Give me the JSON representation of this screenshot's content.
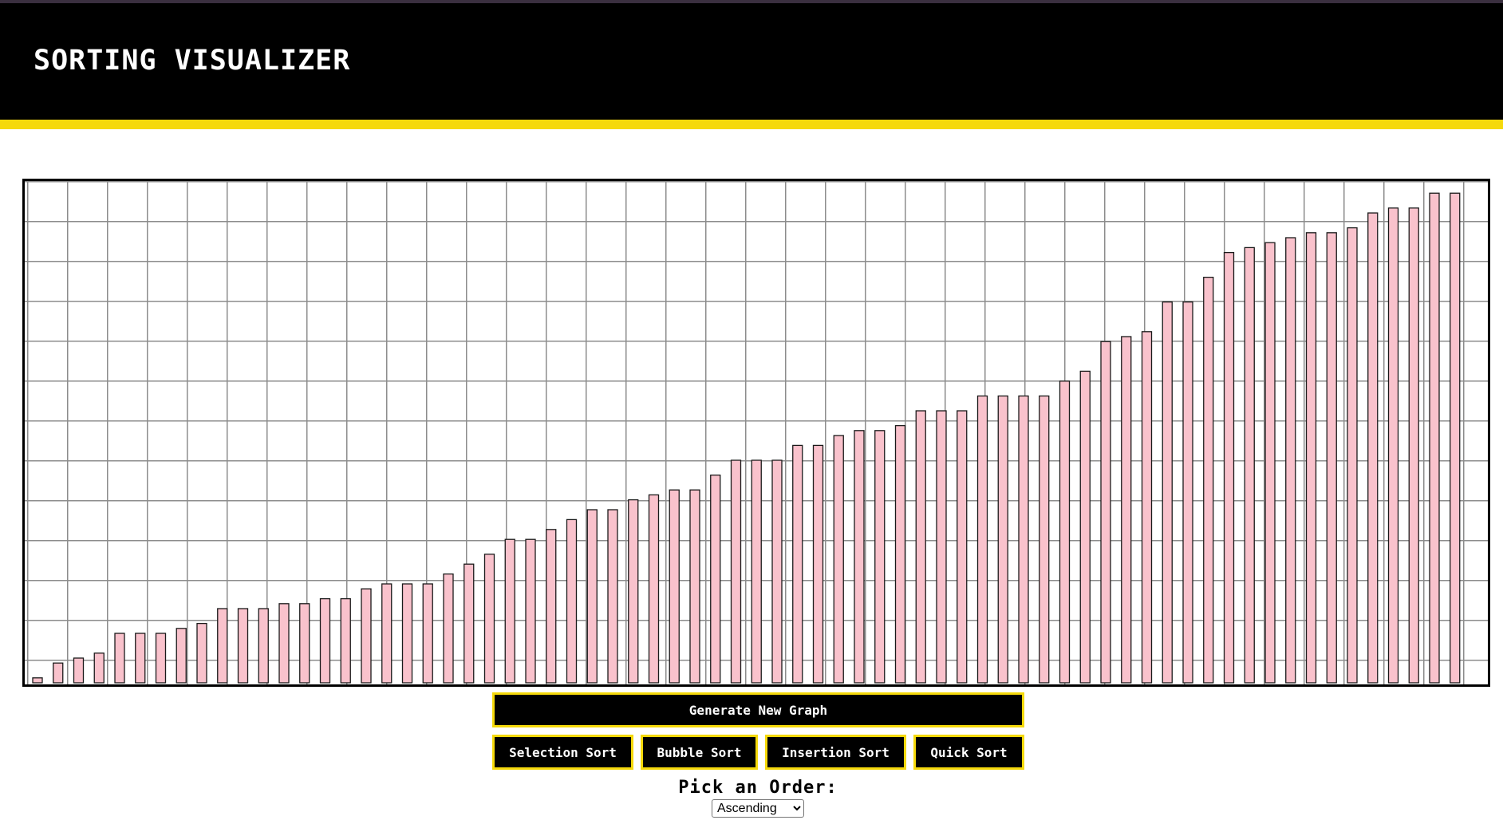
{
  "header": {
    "title": "SORTING VISUALIZER"
  },
  "colors": {
    "header_bg": "#000000",
    "accent": "#f5d90b",
    "bar_fill": "#f9c2cc",
    "bar_stroke": "#1a1a1a",
    "grid": "#8c8c8c"
  },
  "chart_data": {
    "type": "bar",
    "title": "",
    "xlabel": "",
    "ylabel": "",
    "grid": true,
    "ylim": [
      0,
      100
    ],
    "values": [
      1,
      4,
      5,
      6,
      10,
      10,
      10,
      11,
      12,
      15,
      15,
      15,
      16,
      16,
      17,
      17,
      19,
      20,
      20,
      20,
      22,
      24,
      26,
      29,
      29,
      31,
      33,
      35,
      35,
      37,
      38,
      39,
      39,
      42,
      45,
      45,
      45,
      48,
      48,
      50,
      51,
      51,
      52,
      55,
      55,
      55,
      58,
      58,
      58,
      58,
      61,
      63,
      69,
      70,
      71,
      77,
      77,
      82,
      87,
      88,
      89,
      90,
      91,
      91,
      92,
      95,
      96,
      96,
      99,
      99
    ]
  },
  "controls": {
    "generate_label": "Generate New Graph",
    "sort_buttons": [
      {
        "label": "Selection Sort"
      },
      {
        "label": "Bubble Sort"
      },
      {
        "label": "Insertion Sort"
      },
      {
        "label": "Quick Sort"
      }
    ],
    "order_label": "Pick an Order:",
    "order_selected": "Ascending"
  }
}
